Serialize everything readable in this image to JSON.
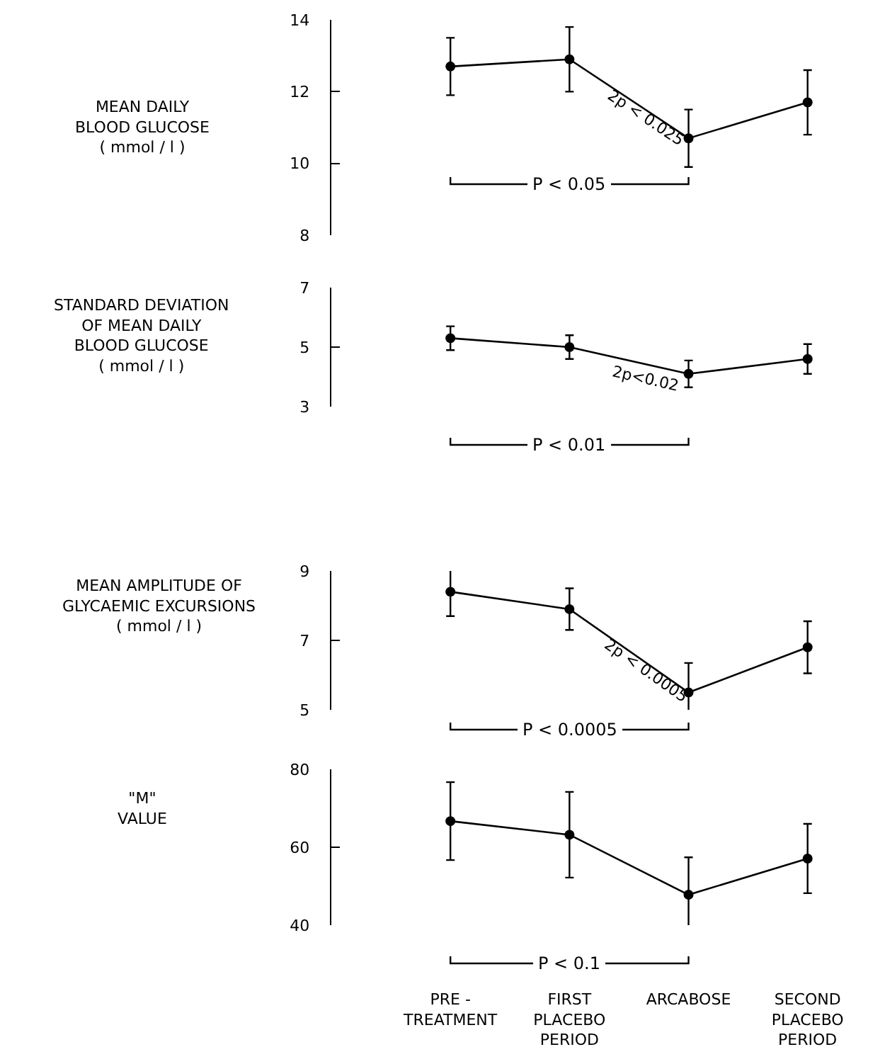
{
  "chart_data": [
    {
      "type": "line",
      "ylabel": "MEAN DAILY\nBLOOD GLUCOSE\n( mmol / l )",
      "categories": [
        "PRE -\nTREATMENT",
        "FIRST\nPLACEBO\nPERIOD",
        "ARCABOSE",
        "SECOND\nPLACEBO\nPERIOD"
      ],
      "values": [
        12.7,
        12.9,
        10.7,
        11.7
      ],
      "errors": [
        0.8,
        0.9,
        0.8,
        0.9
      ],
      "color": "#000000",
      "marker": "circle",
      "ylim": [
        8,
        14
      ],
      "yticks": [
        8,
        10,
        12,
        14
      ],
      "tick_labels": "y",
      "annotations": [
        "2p < 0.025",
        "P < 0.05"
      ]
    },
    {
      "type": "line",
      "ylabel": "STANDARD DEVIATION\nOF MEAN DAILY\nBLOOD GLUCOSE\n( mmol / l )",
      "categories": [
        "PRE -\nTREATMENT",
        "FIRST\nPLACEBO\nPERIOD",
        "ARCABOSE",
        "SECOND\nPLACEBO\nPERIOD"
      ],
      "values": [
        5.3,
        5.0,
        4.1,
        4.6
      ],
      "errors": [
        0.4,
        0.4,
        0.45,
        0.5
      ],
      "color": "#000000",
      "marker": "circle",
      "ylim": [
        3,
        7
      ],
      "yticks": [
        3,
        5,
        7
      ],
      "tick_labels": "y",
      "annotations": [
        "2p<0.02",
        "P < 0.01"
      ]
    },
    {
      "type": "line",
      "ylabel": "MEAN AMPLITUDE OF\nGLYCAEMIC EXCURSIONS\n( mmol / l )",
      "categories": [
        "PRE -\nTREATMENT",
        "FIRST\nPLACEBO\nPERIOD",
        "ARCABOSE",
        "SECOND\nPLACEBO\nPERIOD"
      ],
      "values": [
        8.4,
        7.9,
        5.5,
        6.8
      ],
      "errors": [
        0.7,
        0.6,
        0.85,
        0.75
      ],
      "color": "#000000",
      "marker": "circle",
      "ylim": [
        5,
        9
      ],
      "yticks": [
        5,
        7,
        9
      ],
      "tick_labels": "y",
      "annotations": [
        "2p < 0.0005",
        "P < 0.0005"
      ]
    },
    {
      "type": "line",
      "ylabel": "\"M\"\nVALUE",
      "categories": [
        "PRE -\nTREATMENT",
        "FIRST\nPLACEBO\nPERIOD",
        "ARCABOSE",
        "SECOND\nPLACEBO\nPERIOD"
      ],
      "values": [
        66.7,
        63.2,
        47.8,
        57.1
      ],
      "errors": [
        10,
        11,
        9.6,
        8.9
      ],
      "color": "#000000",
      "marker": "circle",
      "ylim": [
        40,
        80
      ],
      "yticks": [
        40,
        60,
        80
      ],
      "annotations": [
        "P < 0.1"
      ]
    }
  ]
}
